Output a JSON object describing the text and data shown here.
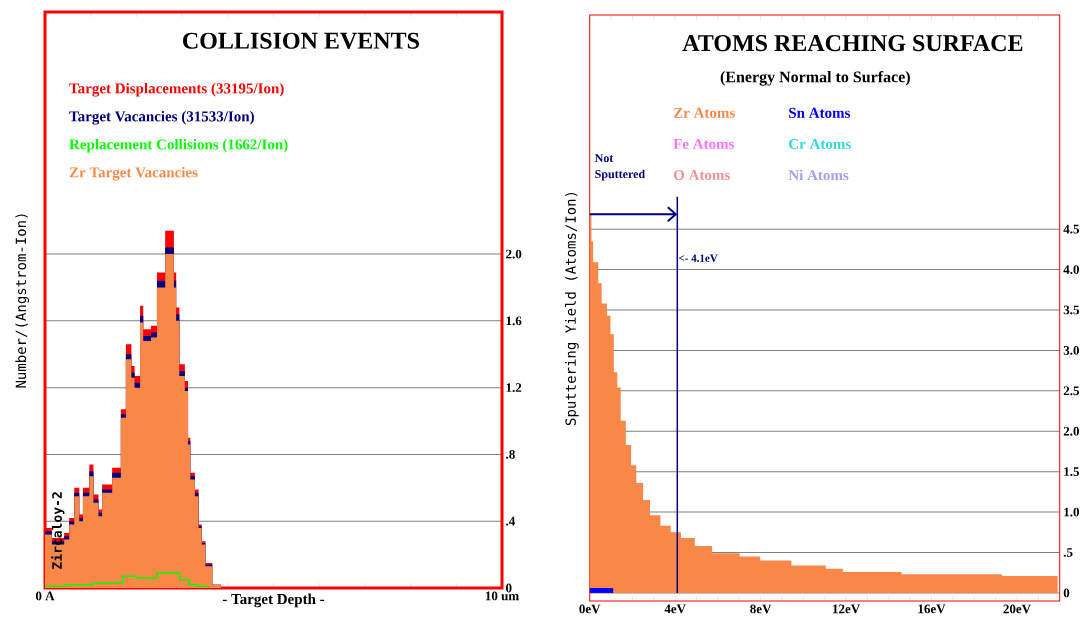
{
  "chart_data": [
    {
      "type": "area",
      "title": "COLLISION EVENTS",
      "xlabel": "- Target Depth -",
      "ylabel": "Number/(Angstrom-Ion)",
      "xlim": [
        0,
        10
      ],
      "ylim": [
        0,
        3.45
      ],
      "xticks": [
        {
          "value": 0,
          "label": "0 A"
        },
        {
          "value": 1,
          "label": null
        },
        {
          "value": 2,
          "label": null
        },
        {
          "value": 3,
          "label": null
        },
        {
          "value": 4,
          "label": null
        },
        {
          "value": 5,
          "label": null
        },
        {
          "value": 6,
          "label": null
        },
        {
          "value": 7,
          "label": null
        },
        {
          "value": 8,
          "label": null
        },
        {
          "value": 9,
          "label": null
        },
        {
          "value": 10,
          "label": "10 um"
        }
      ],
      "yticks": [
        0,
        {
          "value": 0.4,
          "label": ".4"
        },
        {
          "value": 0.8,
          "label": ".8"
        },
        {
          "value": 1.2,
          "label": "1.2"
        },
        {
          "value": 1.6,
          "label": "1.6"
        },
        {
          "value": 2.0,
          "label": "2.0"
        }
      ],
      "grid": "y",
      "legend": "top left",
      "series": [
        {
          "name": "Target Displacements (33195/Ion)",
          "color": "#ff0000",
          "x": [
            0,
            0.15,
            0.42,
            0.53,
            0.64,
            0.75,
            0.83,
            0.97,
            1.06,
            1.17,
            1.25,
            1.47,
            1.66,
            1.77,
            1.89,
            1.96,
            2.08,
            2.15,
            2.32,
            2.45,
            2.63,
            2.82,
            2.87,
            2.94,
            3.06,
            3.13,
            3.18,
            3.28,
            3.36,
            3.43,
            3.51,
            3.66,
            3.85,
            10
          ],
          "values": [
            0.36,
            0.3,
            0.33,
            0.42,
            0.6,
            0.44,
            0.6,
            0.74,
            0.56,
            0.47,
            0.62,
            0.72,
            1.07,
            1.46,
            1.33,
            1.27,
            1.69,
            1.55,
            1.57,
            1.89,
            2.14,
            1.89,
            1.68,
            1.34,
            1.24,
            0.9,
            0.69,
            0.59,
            0.38,
            0.28,
            0.15,
            0.02,
            0,
            0
          ]
        },
        {
          "name": "Target Vacancies (31533/Ion)",
          "color": "#000080",
          "x": [
            0,
            0.15,
            0.42,
            0.53,
            0.64,
            0.75,
            0.83,
            0.97,
            1.06,
            1.17,
            1.25,
            1.47,
            1.66,
            1.77,
            1.89,
            1.96,
            2.08,
            2.15,
            2.32,
            2.45,
            2.63,
            2.82,
            2.87,
            2.94,
            3.06,
            3.13,
            3.18,
            3.28,
            3.36,
            3.43,
            3.51,
            3.66,
            3.85,
            10
          ],
          "values": [
            0.34,
            0.28,
            0.31,
            0.4,
            0.57,
            0.42,
            0.57,
            0.7,
            0.53,
            0.45,
            0.59,
            0.69,
            1.04,
            1.4,
            1.29,
            1.23,
            1.63,
            1.51,
            1.53,
            1.84,
            2.04,
            1.84,
            1.64,
            1.3,
            1.2,
            0.88,
            0.67,
            0.57,
            0.37,
            0.27,
            0.14,
            0.02,
            0,
            0
          ]
        },
        {
          "name": "Replacement Collisions (1662/Ion)",
          "color": "#00ff00",
          "type": "step",
          "x": [
            0,
            0.45,
            1.05,
            1.7,
            2.0,
            2.45,
            2.95,
            3.15,
            3.35,
            3.6
          ],
          "values": [
            0.01,
            0.02,
            0.03,
            0.07,
            0.06,
            0.09,
            0.05,
            0.02,
            0.01,
            0.01
          ]
        },
        {
          "name": "Zr Target Vacancies",
          "color": "#f98848",
          "x": [
            0,
            0.15,
            0.42,
            0.53,
            0.64,
            0.75,
            0.83,
            0.97,
            1.06,
            1.17,
            1.25,
            1.47,
            1.66,
            1.77,
            1.89,
            1.96,
            2.08,
            2.15,
            2.32,
            2.45,
            2.63,
            2.82,
            2.87,
            2.94,
            3.06,
            3.13,
            3.18,
            3.28,
            3.36,
            3.43,
            3.51,
            3.66,
            3.85,
            10
          ],
          "values": [
            0.32,
            0.26,
            0.29,
            0.38,
            0.55,
            0.4,
            0.55,
            0.67,
            0.51,
            0.43,
            0.57,
            0.66,
            1.02,
            1.37,
            1.26,
            1.2,
            1.59,
            1.48,
            1.5,
            1.8,
            2.0,
            1.8,
            1.6,
            1.27,
            1.18,
            0.86,
            0.65,
            0.55,
            0.36,
            0.26,
            0.13,
            0.02,
            0,
            0
          ]
        }
      ],
      "annotations": [
        "Zircaloy-2"
      ]
    },
    {
      "type": "area",
      "title": "ATOMS REACHING SURFACE",
      "subtitle": "(Energy Normal to Surface)",
      "ylabel": "Sputtering Yield (Atoms/Ion)",
      "xlim": [
        0,
        22
      ],
      "ylim": [
        -0.1,
        7.15
      ],
      "xticks": [
        {
          "value": 0,
          "label": "0eV"
        },
        {
          "value": 1,
          "label": null
        },
        {
          "value": 2,
          "label": null
        },
        {
          "value": 3,
          "label": null
        },
        {
          "value": 4,
          "label": "4eV"
        },
        {
          "value": 5,
          "label": null
        },
        {
          "value": 6,
          "label": null
        },
        {
          "value": 7,
          "label": null
        },
        {
          "value": 8,
          "label": "8eV"
        },
        {
          "value": 9,
          "label": null
        },
        {
          "value": 10,
          "label": null
        },
        {
          "value": 11,
          "label": null
        },
        {
          "value": 12,
          "label": "12eV"
        },
        {
          "value": 13,
          "label": null
        },
        {
          "value": 14,
          "label": null
        },
        {
          "value": 15,
          "label": null
        },
        {
          "value": 16,
          "label": "16eV"
        },
        {
          "value": 17,
          "label": null
        },
        {
          "value": 18,
          "label": null
        },
        {
          "value": 19,
          "label": null
        },
        {
          "value": 20,
          "label": "20eV"
        },
        {
          "value": 21,
          "label": null
        }
      ],
      "yticks": [
        0,
        {
          "value": 0.5,
          "label": ".5"
        },
        {
          "value": 1.0,
          "label": "1.0"
        },
        {
          "value": 1.5,
          "label": "1.5"
        },
        {
          "value": 2.0,
          "label": "2.0"
        },
        {
          "value": 2.5,
          "label": "2.5"
        },
        {
          "value": 3.0,
          "label": "3.0"
        },
        {
          "value": 3.5,
          "label": "3.5"
        },
        {
          "value": 4.0,
          "label": "4.0"
        },
        {
          "value": 4.5,
          "label": "4.5"
        }
      ],
      "grid": "y",
      "legend": "top",
      "series": [
        {
          "name": "Zr Atoms",
          "color": "#f98848",
          "x": [
            0,
            0.08,
            0.16,
            0.4,
            0.56,
            0.81,
            0.97,
            1.13,
            1.29,
            1.45,
            1.69,
            1.94,
            2.18,
            2.5,
            2.82,
            3.31,
            3.79,
            4.27,
            4.92,
            5.73,
            7.02,
            7.98,
            9.44,
            11.05,
            11.85,
            14.6,
            16.4,
            19.3,
            21.9
          ],
          "values": [
            4.69,
            4.35,
            4.09,
            3.83,
            3.58,
            3.43,
            3.2,
            2.73,
            2.54,
            2.13,
            1.83,
            1.58,
            1.36,
            1.15,
            0.96,
            0.83,
            0.75,
            0.68,
            0.58,
            0.49,
            0.45,
            0.4,
            0.34,
            0.3,
            0.26,
            0.23,
            0.23,
            0.21,
            0.21
          ]
        },
        {
          "name": "Sn Atoms",
          "color": "#0000ff",
          "x": [
            0,
            1.1
          ],
          "values": [
            0.06,
            0
          ]
        },
        {
          "name": "Fe Atoms",
          "color": "#ff70ff"
        },
        {
          "name": "Cr Atoms",
          "color": "#30d8d8"
        },
        {
          "name": "O Atoms",
          "color": "#f09090"
        },
        {
          "name": "Ni Atoms",
          "color": "#a0a0f0"
        }
      ],
      "ref_lines": [
        {
          "axis": "x",
          "value": 4.1,
          "label": "<- 4.1eV",
          "color": "#000080"
        }
      ],
      "annotations": [
        "Not Sputtered"
      ]
    }
  ]
}
